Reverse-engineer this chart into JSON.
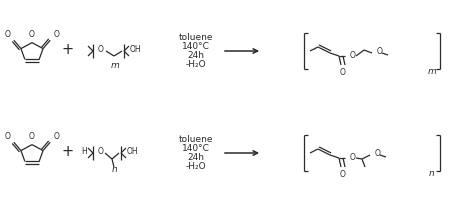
{
  "bg_color": "#ffffff",
  "line_color": "#2a2a2a",
  "text_color": "#2a2a2a",
  "font_size": 6.5,
  "conditions": [
    "toluene",
    "140°C",
    "24h",
    "-H₂O"
  ],
  "figsize": [
    4.74,
    2.04
  ],
  "dpi": 100
}
